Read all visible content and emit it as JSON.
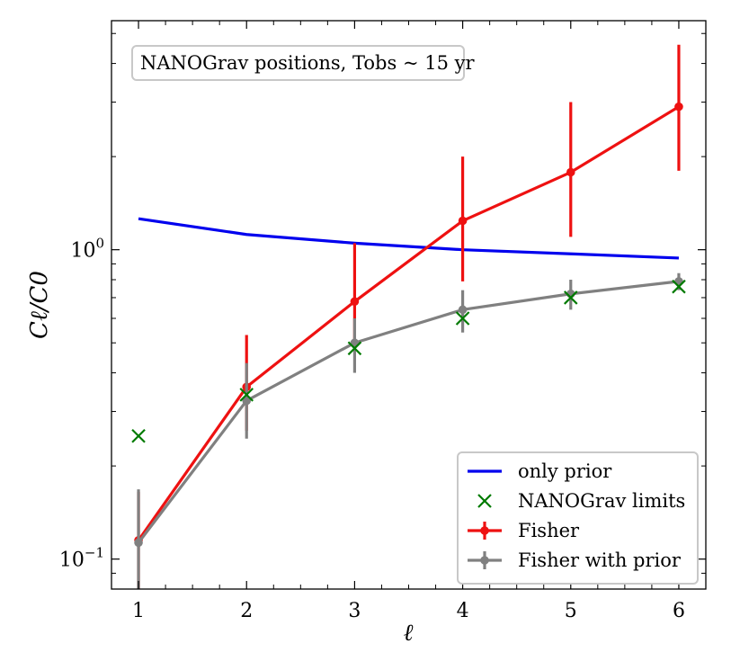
{
  "chart_data": {
    "type": "line",
    "title": "",
    "xlabel": "ℓ",
    "ylabel": "Cℓ/C0",
    "annotation": "NANOGrav positions, Tobs ~ 15 yr",
    "x": [
      1,
      2,
      3,
      4,
      5,
      6
    ],
    "xlim": [
      0.75,
      6.25
    ],
    "ylim": [
      0.08,
      5.5
    ],
    "yscale": "log",
    "x_ticks": [
      "1",
      "2",
      "3",
      "4",
      "5",
      "6"
    ],
    "y_ticks": [
      {
        "value": 0.1,
        "label": "10⁻¹"
      },
      {
        "value": 1,
        "label": "10⁰"
      }
    ],
    "grid": false,
    "legend_position": "bottom-right",
    "series": [
      {
        "name": "only prior",
        "kind": "line",
        "color": "#0000ee",
        "x": [
          1,
          2,
          3,
          4,
          5,
          6
        ],
        "values": [
          1.26,
          1.12,
          1.05,
          1.0,
          0.97,
          0.94
        ]
      },
      {
        "name": "NANOGrav limits",
        "kind": "marker",
        "color": "#007a00",
        "x": [
          1,
          2,
          3,
          4,
          5,
          6
        ],
        "values": [
          0.25,
          0.34,
          0.48,
          0.6,
          0.7,
          0.76
        ]
      },
      {
        "name": "Fisher",
        "kind": "errorbar",
        "color": "#ee1111",
        "x": [
          1,
          2,
          3,
          4,
          5,
          6
        ],
        "values": [
          0.115,
          0.36,
          0.68,
          1.24,
          1.78,
          2.9
        ],
        "lower": [
          0.08,
          0.26,
          0.5,
          0.79,
          1.1,
          1.8
        ],
        "upper": [
          0.165,
          0.53,
          1.05,
          2.0,
          3.0,
          4.6
        ]
      },
      {
        "name": "Fisher with prior",
        "kind": "errorbar",
        "color": "#808080",
        "x": [
          1,
          2,
          3,
          4,
          5,
          6
        ],
        "values": [
          0.113,
          0.325,
          0.5,
          0.64,
          0.72,
          0.79
        ],
        "lower": [
          0.08,
          0.245,
          0.4,
          0.54,
          0.64,
          0.74
        ],
        "upper": [
          0.168,
          0.43,
          0.6,
          0.74,
          0.8,
          0.84
        ]
      }
    ]
  }
}
